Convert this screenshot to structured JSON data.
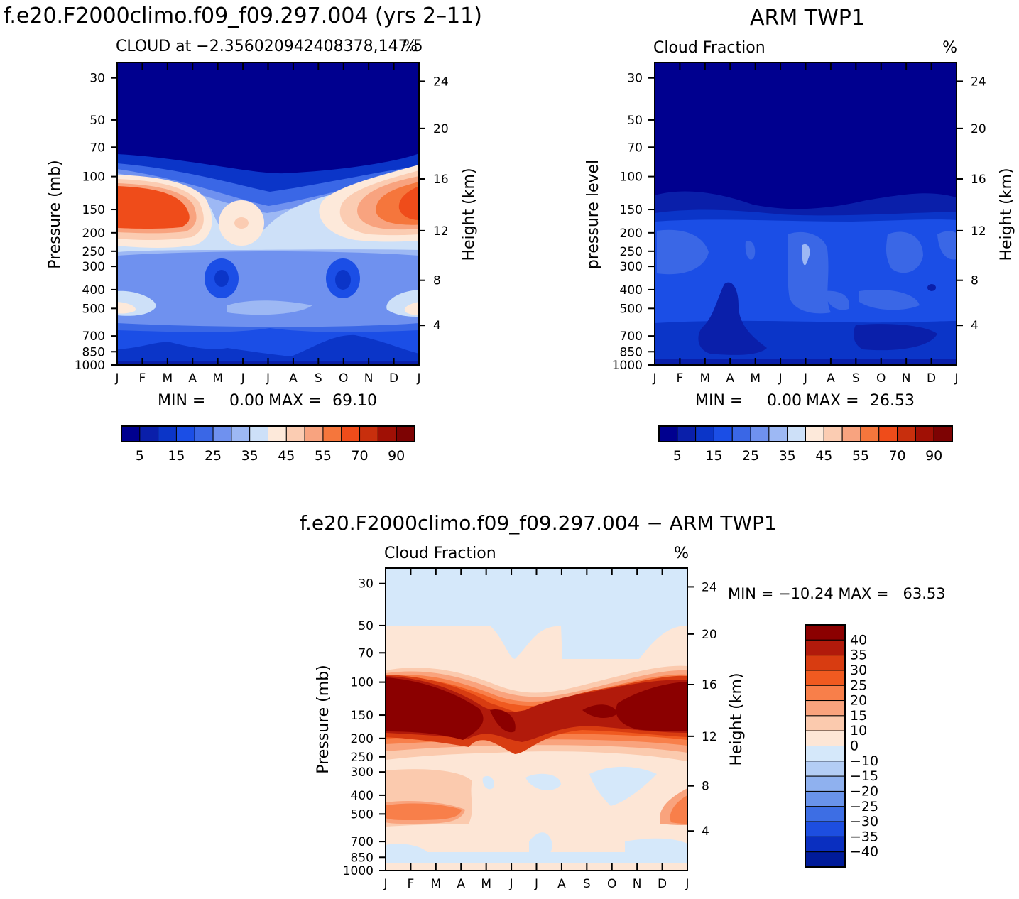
{
  "charts": {
    "left": {
      "title": "f.e20.F2000climo.f09_f09.297.004 (yrs 2–11)",
      "subtitle_left": "CLOUD at −2.356020942408378,147.5",
      "subtitle_right": "%",
      "ylabel": "Pressure (mb)",
      "y2label": "Height (km)",
      "min_label": "MIN =",
      "min_value": "0.00",
      "max_label": "MAX =",
      "max_value": "69.10"
    },
    "right": {
      "title": "ARM TWP1",
      "subtitle_left": "Cloud Fraction",
      "subtitle_right": "%",
      "ylabel": "pressure level",
      "y2label": "Height (km)",
      "min_label": "MIN =",
      "min_value": "0.00",
      "max_label": "MAX =",
      "max_value": "26.53"
    },
    "diff": {
      "title": "f.e20.F2000climo.f09_f09.297.004 − ARM TWP1",
      "subtitle_left": "Cloud Fraction",
      "subtitle_right": "%",
      "ylabel": "Pressure (mb)",
      "y2label": "Height (km)",
      "stats": "MIN = −10.24 MAX =   63.53"
    }
  },
  "chart_data": [
    {
      "type": "heatmap",
      "name": "model",
      "x_ticks": [
        "J",
        "F",
        "M",
        "A",
        "M",
        "J",
        "J",
        "A",
        "S",
        "O",
        "N",
        "D",
        "J"
      ],
      "pressure_ticks": [
        "30",
        "50",
        "70",
        "100",
        "150",
        "200",
        "250",
        "300",
        "400",
        "500",
        "700",
        "850",
        "1000"
      ],
      "height_ticks": [
        "24",
        "20",
        "16",
        "12",
        "8",
        "4"
      ],
      "colorbar_labels": [
        "5",
        "15",
        "25",
        "35",
        "45",
        "55",
        "70",
        "90"
      ],
      "levels": [
        5,
        10,
        15,
        20,
        25,
        30,
        35,
        40,
        45,
        50,
        55,
        60,
        70,
        80,
        90
      ],
      "min": 0.0,
      "max": 69.1
    },
    {
      "type": "heatmap",
      "name": "observations",
      "x_ticks": [
        "J",
        "F",
        "M",
        "A",
        "M",
        "J",
        "J",
        "A",
        "S",
        "O",
        "N",
        "D",
        "J"
      ],
      "pressure_ticks": [
        "30",
        "50",
        "70",
        "100",
        "150",
        "200",
        "250",
        "300",
        "400",
        "500",
        "700",
        "850",
        "1000"
      ],
      "height_ticks": [
        "24",
        "20",
        "16",
        "12",
        "8",
        "4"
      ],
      "colorbar_labels": [
        "5",
        "15",
        "25",
        "35",
        "45",
        "55",
        "70",
        "90"
      ],
      "levels": [
        5,
        10,
        15,
        20,
        25,
        30,
        35,
        40,
        45,
        50,
        55,
        60,
        70,
        80,
        90
      ],
      "min": 0.0,
      "max": 26.53
    },
    {
      "type": "heatmap",
      "name": "difference",
      "x_ticks": [
        "J",
        "F",
        "M",
        "A",
        "M",
        "J",
        "J",
        "A",
        "S",
        "O",
        "N",
        "D",
        "J"
      ],
      "pressure_ticks": [
        "30",
        "50",
        "70",
        "100",
        "150",
        "200",
        "250",
        "300",
        "400",
        "500",
        "700",
        "850",
        "1000"
      ],
      "height_ticks": [
        "24",
        "20",
        "16",
        "12",
        "8",
        "4"
      ],
      "colorbar_labels": [
        "40",
        "35",
        "30",
        "25",
        "20",
        "15",
        "10",
        "0",
        "−10",
        "−15",
        "−20",
        "−25",
        "−30",
        "−35",
        "−40"
      ],
      "min": -10.24,
      "max": 63.53
    }
  ],
  "colors": {
    "seq": [
      "#00008f",
      "#0a1faa",
      "#0b35c8",
      "#1b4ee6",
      "#3a67e6",
      "#6f91ef",
      "#9db8f4",
      "#cde0f8",
      "#fde9da",
      "#fbccb2",
      "#f8a37f",
      "#f5763c",
      "#ef4c1a",
      "#c82f0d",
      "#a01005",
      "#7d0303"
    ],
    "div": [
      "#8b0000",
      "#b11a0b",
      "#d83c11",
      "#f05a20",
      "#f87f4a",
      "#f9a37d",
      "#fbcaae",
      "#fde6d6",
      "#d5e8fa",
      "#b3cdf5",
      "#8fb1ef",
      "#6993ea",
      "#3d6ee4",
      "#1d4ee0",
      "#0a2fc0",
      "#001b99"
    ]
  }
}
